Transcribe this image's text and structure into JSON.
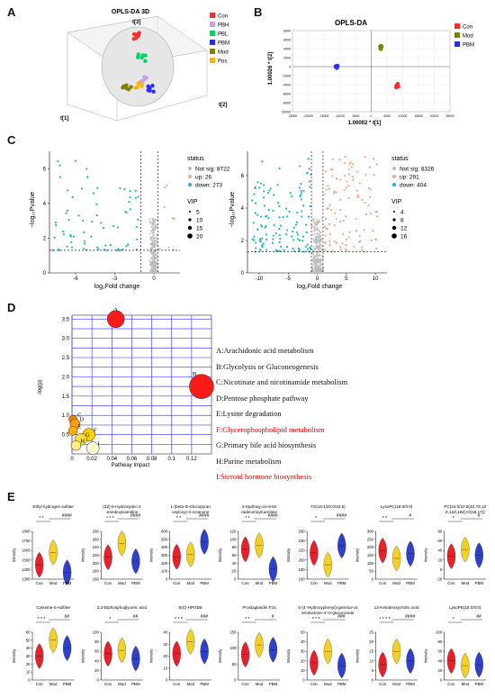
{
  "panels": {
    "A": {
      "letter": "A",
      "title": "OPLS-DA 3D",
      "axes": {
        "t1": "t[1]",
        "t2": "t[2]",
        "t3": "t[3]"
      },
      "legend": [
        {
          "name": "Con",
          "color": "#ff2a2a"
        },
        {
          "name": "PBH",
          "color": "#c8a0e8"
        },
        {
          "name": "PBL",
          "color": "#00d26a"
        },
        {
          "name": "PBM",
          "color": "#2a2aff"
        },
        {
          "name": "Mod",
          "color": "#808000"
        },
        {
          "name": "Pos",
          "color": "#ffb000"
        }
      ]
    },
    "B": {
      "letter": "B",
      "title": "OPLS-DA",
      "xlabel": "1.00002 * t[1]",
      "ylabel": "1.00026 * t[2]",
      "legend": [
        {
          "name": "Con",
          "color": "#ff2a2a"
        },
        {
          "name": "Mod",
          "color": "#808000"
        },
        {
          "name": "PBM",
          "color": "#2a2aff"
        }
      ]
    },
    "C": {
      "letter": "C",
      "left": {
        "xlabel": "log₂Fold change",
        "ylabel": "−log₁₀Pvalue",
        "status_title": "status",
        "status": [
          {
            "label": "Not sig: 8722",
            "color": "#bbbbbb"
          },
          {
            "label": "up: 26",
            "color": "#f4a582"
          },
          {
            "label": "down: 273",
            "color": "#22b2cc"
          }
        ],
        "vip_title": "VIP",
        "vip": [
          "5",
          "10",
          "15",
          "20"
        ]
      },
      "right": {
        "xlabel": "log₂Fold change",
        "ylabel": "−log₁₀Pvalue",
        "status_title": "status",
        "status": [
          {
            "label": "Not sig: 8326",
            "color": "#bbbbbb"
          },
          {
            "label": "up: 291",
            "color": "#f4a582"
          },
          {
            "label": "down: 404",
            "color": "#22b2cc"
          }
        ],
        "vip_title": "VIP",
        "vip": [
          "4",
          "8",
          "12",
          "16"
        ]
      }
    },
    "D": {
      "letter": "D",
      "xlabel": "Pathway Impact",
      "ylabel": "-log(p)",
      "pathways": [
        {
          "text": "A:Arachidonic acid metabolism",
          "red": false
        },
        {
          "text": "B:Glycolysis or Gluconeogenesis",
          "red": false
        },
        {
          "text": "C:Nicotinate and nicotinamide metabolism",
          "red": false
        },
        {
          "text": "D:Pentose phosphate pathway",
          "red": false
        },
        {
          "text": "E:Lysine degradation",
          "red": false
        },
        {
          "text": "F:Glycerophospholipid metabolism",
          "red": true
        },
        {
          "text": "G:Primary bile acid biosynthesis",
          "red": false
        },
        {
          "text": "H:Purine metabolism",
          "red": false
        },
        {
          "text": "I:Steroid hormone biosynthesis",
          "red": true
        }
      ]
    },
    "E": {
      "letter": "E",
      "groups": [
        "Con",
        "Mod",
        "PBM"
      ],
      "ylabel": "Intensity",
      "row1": [
        {
          "title": "Ethyl hydrogen sulfate",
          "sig1": "* *",
          "sig2": "####"
        },
        {
          "title": "(2Z)-5-Hydroxydec-2-enedioylcarnitine",
          "sig1": "* * *",
          "sig2": "####"
        },
        {
          "title": "1-(beta-D-Glucopyranosyloxy)-3-octanone",
          "sig1": "* *",
          "sig2": "####"
        },
        {
          "title": "3-Hydroxy-cis-5-tetradecenoylcarnitine",
          "sig1": "* *",
          "sig2": "####"
        },
        {
          "title": "TG(16:1/22:0/22:5)",
          "sig1": "*",
          "sig2": "####"
        },
        {
          "title": "LysoPC(18:0/0:0)",
          "sig1": "* *",
          "sig2": "#"
        },
        {
          "title": "PC(15:0/22:5(4Z,7Z,10Z,13Z,19Z)-O(16,17))",
          "sig1": "*",
          "sig2": "#"
        }
      ],
      "row2": [
        {
          "title": "Cysteine-S-sulfate",
          "sig1": "* * *",
          "sig2": "##"
        },
        {
          "title": "2,3-Diphosphoglyceric acid",
          "sig1": "*",
          "sig2": "##"
        },
        {
          "title": "9(S)-HPODE",
          "sig1": "* * *",
          "sig2": "###"
        },
        {
          "title": "Prostaglandin F2a",
          "sig1": "* *",
          "sig2": "#"
        },
        {
          "title": "5-(4'-Hydroxyphenyl)-gamma-valerolactone-4'-O-glucuronide",
          "sig1": "* * *",
          "sig2": "###"
        },
        {
          "title": "12-Ketodeoxycholic acid",
          "sig1": "* * * *",
          "sig2": "####"
        },
        {
          "title": "LysoPE(18:0/0:0)",
          "sig1": "*",
          "sig2": "##"
        }
      ]
    }
  },
  "chart_data": [
    {
      "type": "scatter",
      "title": "OPLS-DA",
      "xlabel": "1.00002 * t[1]",
      "ylabel": "1.00026 * t[2]",
      "xlim": [
        -25000,
        25000
      ],
      "ylim": [
        -10000,
        8000
      ],
      "x_ticks": [
        "-25000",
        "-20000",
        "-15000",
        "-10000",
        "-5000",
        "0",
        "5000",
        "10000",
        "15000",
        "20000",
        "25000"
      ],
      "y_ticks": [
        "8000",
        "6000",
        "4000",
        "2000",
        "0",
        "-2000",
        "-4000",
        "-6000",
        "-8000",
        "-10000"
      ],
      "series": [
        {
          "name": "Con",
          "color": "#ff2a2a",
          "points": [
            [
              8000,
              -4200
            ],
            [
              8300,
              -4000
            ],
            [
              8600,
              -4400
            ],
            [
              7900,
              -4600
            ],
            [
              8400,
              -3800
            ],
            [
              8100,
              -4500
            ]
          ]
        },
        {
          "name": "Mod",
          "color": "#808000",
          "points": [
            [
              3000,
              4200
            ],
            [
              3200,
              4600
            ],
            [
              2900,
              4000
            ],
            [
              3300,
              4400
            ],
            [
              3100,
              3900
            ],
            [
              2800,
              4500
            ]
          ]
        },
        {
          "name": "PBM",
          "color": "#2a2aff",
          "points": [
            [
              -11000,
              -200
            ],
            [
              -10800,
              0
            ],
            [
              -11300,
              100
            ],
            [
              -10900,
              -300
            ],
            [
              -11200,
              -100
            ],
            [
              -10700,
              200
            ]
          ]
        }
      ]
    },
    {
      "type": "scatter",
      "title": "",
      "xlabel": "Pathway Impact",
      "ylabel": "-log(p)",
      "xlim": [
        0,
        0.14
      ],
      "ylim": [
        0,
        3.6
      ],
      "x_ticks": [
        "0",
        "0.02",
        "0.04",
        "0.06",
        "0.08",
        "0.1",
        "0.12"
      ],
      "y_ticks": [
        "0.5",
        "1.0",
        "1.5",
        "2.0",
        "2.5",
        "3.0",
        "3.5"
      ],
      "points": [
        {
          "label": "A",
          "x": 0.044,
          "y": 3.5,
          "size": 16,
          "color": "#ff1a1a"
        },
        {
          "label": "B",
          "x": 0.13,
          "y": 1.75,
          "size": 24,
          "color": "#ff1a1a"
        },
        {
          "label": "C",
          "x": 0.001,
          "y": 0.9,
          "size": 6,
          "color": "#f08000"
        },
        {
          "label": "D",
          "x": 0.003,
          "y": 0.78,
          "size": 8,
          "color": "#ffa000"
        },
        {
          "label": "E",
          "x": 0.001,
          "y": 0.6,
          "size": 7,
          "color": "#ffb000"
        },
        {
          "label": "F",
          "x": 0.017,
          "y": 0.5,
          "size": 11,
          "color": "#ffd000"
        },
        {
          "label": "G",
          "x": 0.009,
          "y": 0.38,
          "size": 10,
          "color": "#ffe040"
        },
        {
          "label": "H",
          "x": 0.004,
          "y": 0.22,
          "size": 8,
          "color": "#fff080"
        },
        {
          "label": "I",
          "x": 0.021,
          "y": 0.15,
          "size": 11,
          "color": "#fffbd0"
        }
      ]
    },
    {
      "type": "violin",
      "title": "",
      "groups": [
        "Con",
        "Mod",
        "PBM"
      ],
      "colors": [
        "#e8202a",
        "#f2d024",
        "#3040c8"
      ],
      "row1_values": [
        {
          "y_ticks": [
            "1300",
            "1400",
            "1500",
            "1600",
            "1700",
            "1800"
          ],
          "ylim": [
            1300,
            1800
          ],
          "medians": [
            1450,
            1580,
            1370
          ]
        },
        {
          "y_ticks": [
            "160",
            "180",
            "200",
            "220",
            "240",
            "260",
            "280"
          ],
          "ylim": [
            160,
            280
          ],
          "medians": [
            215,
            250,
            205
          ]
        },
        {
          "y_ticks": [
            "0",
            "100",
            "200",
            "300",
            "400",
            "500",
            "600"
          ],
          "ylim": [
            0,
            600
          ],
          "medians": [
            280,
            310,
            470
          ]
        },
        {
          "y_ticks": [
            "0",
            "20",
            "40",
            "60",
            "80",
            "100",
            "120"
          ],
          "ylim": [
            0,
            120
          ],
          "medians": [
            75,
            85,
            25
          ]
        },
        {
          "y_ticks": [
            "160",
            "180",
            "200",
            "220",
            "240",
            "260"
          ],
          "ylim": [
            160,
            260
          ],
          "medians": [
            215,
            190,
            230
          ]
        },
        {
          "y_ticks": [
            "0",
            "50",
            "100",
            "150",
            "200",
            "250",
            "300"
          ],
          "ylim": [
            0,
            300
          ],
          "medians": [
            180,
            130,
            160
          ]
        },
        {
          "y_ticks": [
            "-20",
            "0",
            "20",
            "40",
            "60",
            "80"
          ],
          "ylim": [
            -20,
            80
          ],
          "medians": [
            28,
            42,
            30
          ]
        }
      ],
      "row2_values": [
        {
          "y_ticks": [
            "0",
            "10",
            "20",
            "30",
            "40",
            "50",
            "60"
          ],
          "ylim": [
            0,
            60
          ],
          "medians": [
            30,
            50,
            40
          ]
        },
        {
          "y_ticks": [
            "0",
            "20",
            "40",
            "60",
            "80",
            "100"
          ],
          "ylim": [
            0,
            100
          ],
          "medians": [
            55,
            62,
            45
          ]
        },
        {
          "y_ticks": [
            "0",
            "10",
            "20",
            "30",
            "40"
          ],
          "ylim": [
            0,
            40
          ],
          "medians": [
            22,
            32,
            24
          ]
        },
        {
          "y_ticks": [
            "0",
            "50",
            "100",
            "150"
          ],
          "ylim": [
            0,
            150
          ],
          "medians": [
            80,
            110,
            95
          ]
        },
        {
          "y_ticks": [
            "0",
            "10",
            "20",
            "30",
            "40",
            "50"
          ],
          "ylim": [
            0,
            50
          ],
          "medians": [
            18,
            30,
            15
          ]
        },
        {
          "y_ticks": [
            "0",
            "5",
            "10",
            "15",
            "20",
            "25"
          ],
          "ylim": [
            0,
            25
          ],
          "medians": [
            8,
            15,
            10
          ]
        },
        {
          "y_ticks": [
            "0",
            "20",
            "40",
            "60",
            "80",
            "100"
          ],
          "ylim": [
            0,
            100
          ],
          "medians": [
            40,
            30,
            32
          ]
        }
      ]
    }
  ]
}
